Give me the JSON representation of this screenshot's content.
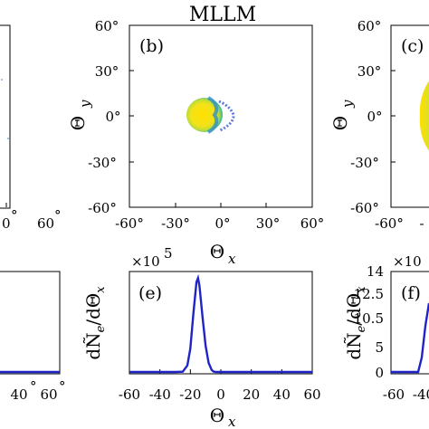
{
  "title": "MLLM",
  "panels": {
    "b": {
      "label": "(b)",
      "xlabel_main": "Θ",
      "xlabel_sub": "x",
      "ylabel_main": "Θ",
      "ylabel_sub": "y"
    },
    "c": {
      "label": "(c)",
      "ylabel_main": "Θ",
      "ylabel_sub": "y"
    },
    "e": {
      "label": "(e)",
      "exponent": "×10",
      "exponent_power": "5",
      "xlabel_main": "Θ",
      "xlabel_sub": "x"
    },
    "f": {
      "label": "(f)",
      "exponent": "×10"
    }
  },
  "chart_data": [
    {
      "panel": "b",
      "type": "scatter",
      "xlabel": "Θx",
      "ylabel": "Θy",
      "xlim": [
        -60,
        60
      ],
      "ylim": [
        -60,
        60
      ],
      "x_ticks": [
        "-60°",
        "-30°",
        "0°",
        "30°",
        "60°"
      ],
      "y_ticks": [
        "60°",
        "30°",
        "0°",
        "-30°",
        "-60°"
      ],
      "blob": {
        "center_x": -11,
        "center_y": 0,
        "radius_x": 12,
        "radius_y": 11
      }
    },
    {
      "panel": "c",
      "type": "scatter",
      "ylabel": "Θy",
      "xlim": [
        -60,
        60
      ],
      "ylim": [
        -60,
        60
      ],
      "x_ticks_visible": [
        "-60°",
        "-"
      ],
      "y_ticks": [
        "60°",
        "30°",
        "0°",
        "-30°",
        "-60°"
      ]
    },
    {
      "panel": "e",
      "type": "line",
      "xlabel": "Θx",
      "ylabel": "dÑe/dΘx",
      "xlim": [
        -60,
        60
      ],
      "x_ticks": [
        "-60",
        "-40",
        "-20",
        "0",
        "20",
        "40",
        "60"
      ],
      "series": [
        {
          "x": [
            -60,
            -40,
            -30,
            -25,
            -22,
            -20,
            -18,
            -16,
            -15,
            -14,
            -12,
            -10,
            -8,
            -6,
            -5,
            -4,
            0,
            20,
            40,
            60
          ],
          "y": [
            0,
            0,
            0,
            0.02,
            0.5,
            1.8,
            4.5,
            6.9,
            7.2,
            6.6,
            4.2,
            2.0,
            0.7,
            0.15,
            0.05,
            0.01,
            0,
            0,
            0,
            0
          ]
        }
      ],
      "ylim": [
        0,
        7.7
      ]
    },
    {
      "panel": "f",
      "type": "line",
      "ylabel": "dÑe/dΘx",
      "y_ticks": [
        "14",
        "12.5",
        "10.5",
        "5",
        "0"
      ],
      "x_ticks_visible": [
        "-60",
        "-40"
      ]
    },
    {
      "panel": "a-fragment",
      "type": "line",
      "x_ticks_visible": [
        "0",
        "60"
      ],
      "x_ticks_lower_visible": [
        "40",
        "60"
      ]
    }
  ]
}
